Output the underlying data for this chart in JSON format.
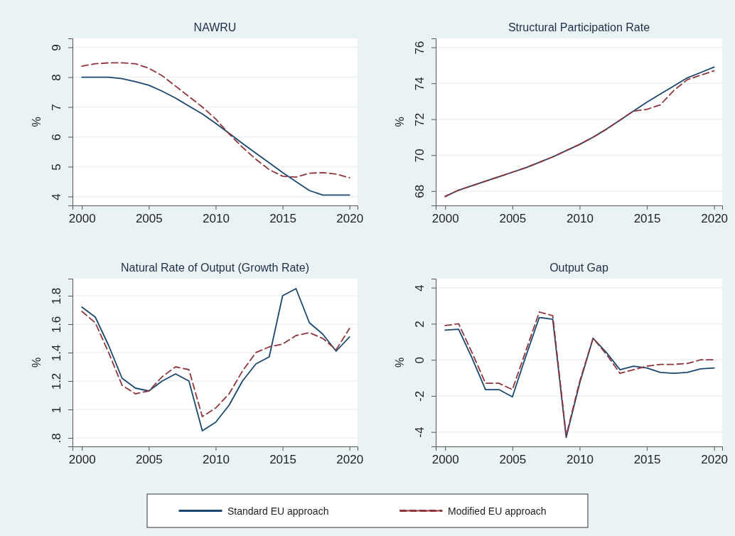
{
  "chart_data": [
    {
      "type": "line",
      "title": "NAWRU",
      "ylabel": "%",
      "x": [
        2000,
        2001,
        2002,
        2003,
        2004,
        2005,
        2006,
        2007,
        2008,
        2009,
        2010,
        2011,
        2012,
        2013,
        2014,
        2015,
        2016,
        2017,
        2018,
        2019,
        2020
      ],
      "xlim": [
        1999.3,
        2020.6
      ],
      "xticks": [
        2000,
        2005,
        2010,
        2015,
        2020
      ],
      "ylim": [
        3.7,
        9.3
      ],
      "yticks": [
        4,
        5,
        6,
        7,
        8,
        9
      ],
      "grid": "y",
      "legend": "bottom",
      "series": [
        {
          "name": "Standard EU approach",
          "color": "#1a476f",
          "line_style": "solid",
          "values": [
            8.0,
            8.0,
            8.0,
            7.95,
            7.85,
            7.73,
            7.53,
            7.3,
            7.03,
            6.77,
            6.45,
            6.12,
            5.78,
            5.45,
            5.13,
            4.8,
            4.5,
            4.2,
            4.05,
            4.05,
            4.05
          ]
        },
        {
          "name": "Modified EU approach",
          "color": "#90353b",
          "line_style": "dashed",
          "values": [
            8.37,
            8.45,
            8.48,
            8.48,
            8.45,
            8.3,
            8.05,
            7.7,
            7.35,
            7.0,
            6.6,
            6.1,
            5.65,
            5.25,
            4.9,
            4.68,
            4.65,
            4.78,
            4.8,
            4.75,
            4.63
          ]
        }
      ]
    },
    {
      "type": "line",
      "title": "Structural Participation Rate",
      "ylabel": "%",
      "x": [
        2000,
        2001,
        2002,
        2003,
        2004,
        2005,
        2006,
        2007,
        2008,
        2009,
        2010,
        2011,
        2012,
        2013,
        2014,
        2015,
        2016,
        2017,
        2018,
        2019,
        2020
      ],
      "xlim": [
        1999.3,
        2020.6
      ],
      "xticks": [
        2000,
        2005,
        2010,
        2015,
        2020
      ],
      "ylim": [
        67.2,
        76.5
      ],
      "yticks": [
        68,
        70,
        72,
        74,
        76
      ],
      "grid": "y",
      "series": [
        {
          "color": "#1a476f",
          "line_style": "solid",
          "values": [
            67.7,
            68.05,
            68.3,
            68.55,
            68.8,
            69.05,
            69.3,
            69.6,
            69.9,
            70.25,
            70.6,
            71.0,
            71.45,
            71.95,
            72.45,
            72.95,
            73.4,
            73.85,
            74.3,
            74.6,
            74.9
          ]
        },
        {
          "color": "#90353b",
          "line_style": "dashed",
          "values": [
            67.7,
            68.05,
            68.3,
            68.55,
            68.8,
            69.05,
            69.3,
            69.6,
            69.9,
            70.25,
            70.6,
            71.0,
            71.45,
            71.95,
            72.45,
            72.55,
            72.8,
            73.6,
            74.2,
            74.45,
            74.7
          ]
        }
      ]
    },
    {
      "type": "line",
      "title": "Natural Rate of Output (Growth Rate)",
      "ylabel": "%",
      "x": [
        2000,
        2001,
        2002,
        2003,
        2004,
        2005,
        2006,
        2007,
        2008,
        2009,
        2010,
        2011,
        2012,
        2013,
        2014,
        2015,
        2016,
        2017,
        2018,
        2019,
        2020
      ],
      "xlim": [
        1999.3,
        2020.6
      ],
      "xticks": [
        2000,
        2005,
        2010,
        2015,
        2020
      ],
      "ylim": [
        0.74,
        1.92
      ],
      "yticks": [
        {
          "value": 0.8,
          "label": ".8"
        },
        1,
        1.2,
        1.4,
        1.6,
        1.8
      ],
      "grid": "y",
      "series": [
        {
          "color": "#1a476f",
          "line_style": "solid",
          "values": [
            1.72,
            1.65,
            1.45,
            1.22,
            1.15,
            1.13,
            1.2,
            1.25,
            1.2,
            0.85,
            0.91,
            1.03,
            1.2,
            1.32,
            1.37,
            1.8,
            1.85,
            1.61,
            1.53,
            1.41,
            1.51
          ]
        },
        {
          "color": "#90353b",
          "line_style": "dashed",
          "values": [
            1.69,
            1.61,
            1.4,
            1.17,
            1.11,
            1.13,
            1.23,
            1.3,
            1.28,
            0.95,
            1.01,
            1.11,
            1.27,
            1.4,
            1.44,
            1.46,
            1.52,
            1.54,
            1.5,
            1.42,
            1.57
          ]
        }
      ]
    },
    {
      "type": "line",
      "title": "Output Gap",
      "ylabel": "%",
      "x": [
        2000,
        2001,
        2002,
        2003,
        2004,
        2005,
        2006,
        2007,
        2008,
        2009,
        2010,
        2011,
        2012,
        2013,
        2014,
        2015,
        2016,
        2017,
        2018,
        2019,
        2020
      ],
      "xlim": [
        1999.3,
        2020.6
      ],
      "xticks": [
        2000,
        2005,
        2010,
        2015,
        2020
      ],
      "ylim": [
        -4.8,
        4.5
      ],
      "yticks": [
        -4,
        -2,
        0,
        2,
        4
      ],
      "grid": "y",
      "series": [
        {
          "color": "#1a476f",
          "line_style": "solid",
          "values": [
            1.65,
            1.7,
            0.1,
            -1.65,
            -1.65,
            -2.05,
            0.2,
            2.35,
            2.25,
            -4.3,
            -1.3,
            1.2,
            0.4,
            -0.55,
            -0.35,
            -0.45,
            -0.7,
            -0.75,
            -0.7,
            -0.5,
            -0.45
          ]
        },
        {
          "color": "#90353b",
          "line_style": "dashed",
          "values": [
            1.9,
            2.0,
            0.4,
            -1.3,
            -1.3,
            -1.65,
            0.5,
            2.65,
            2.45,
            -4.2,
            -1.2,
            1.2,
            0.3,
            -0.75,
            -0.55,
            -0.35,
            -0.25,
            -0.25,
            -0.2,
            0.0,
            0.0
          ]
        }
      ]
    }
  ]
}
